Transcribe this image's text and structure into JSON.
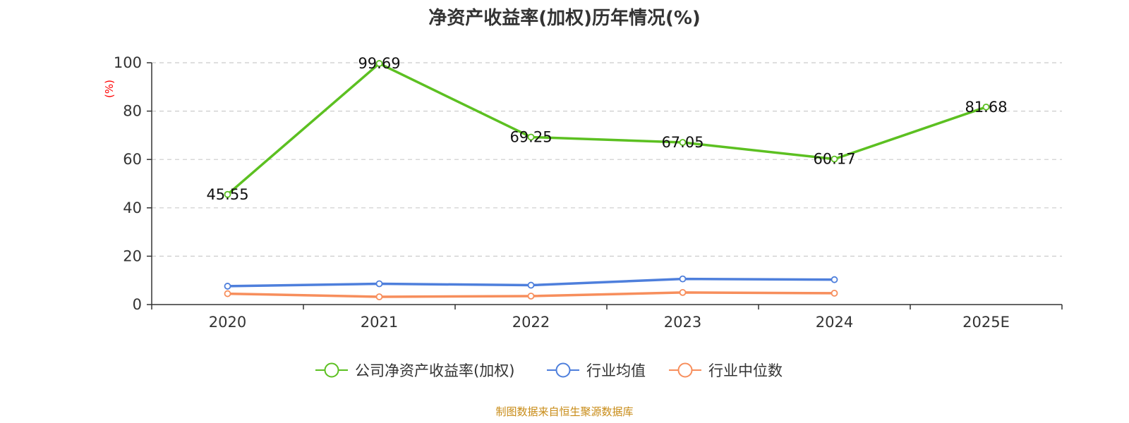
{
  "chart_data": {
    "type": "line",
    "title": "净资产收益率(加权)历年情况(%)",
    "ylabel": "(%)",
    "ylim": [
      0,
      100
    ],
    "yticks": [
      "0",
      "20",
      "40",
      "60",
      "80",
      "100"
    ],
    "categories": [
      "2020",
      "2021",
      "2022",
      "2023",
      "2024",
      "2025E"
    ],
    "grid": true,
    "legend_position": "bottom",
    "series": [
      {
        "name": "公司净资产收益率(加权)",
        "color": "#5cc021",
        "values": [
          45.55,
          99.69,
          69.25,
          67.05,
          60.17,
          81.68
        ],
        "labels": [
          "45.55",
          "99.69",
          "69.25",
          "67.05",
          "60.17",
          "81.68"
        ]
      },
      {
        "name": "行业均值",
        "color": "#4e7fdc",
        "values": [
          7.6,
          8.6,
          8.0,
          10.6,
          10.3,
          null
        ]
      },
      {
        "name": "行业中位数",
        "color": "#f78e5c",
        "values": [
          4.5,
          3.2,
          3.5,
          5.0,
          4.7,
          null
        ]
      }
    ]
  },
  "footer": {
    "source": "制图数据来自恒生聚源数据库",
    "source_color": "#c88b16"
  },
  "colors": {
    "axis": "#333333",
    "grid": "#cccccc",
    "unit": "#ff0000"
  }
}
